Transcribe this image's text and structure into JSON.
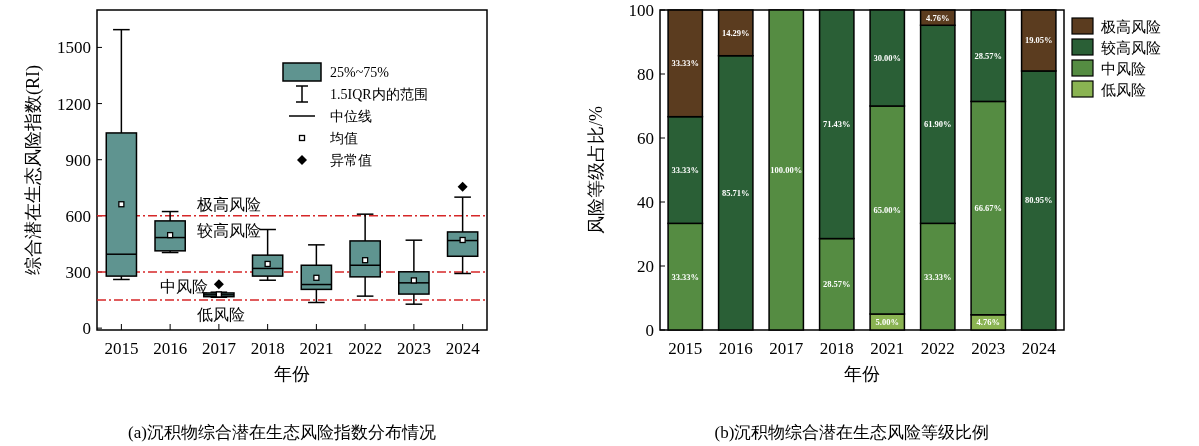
{
  "chart_data": [
    {
      "type": "box",
      "title": "(a)沉积物综合潜在生态风险指数分布情况",
      "xlabel": "年份",
      "ylabel": "综合潜在生态风险指数(RI)",
      "categories": [
        "2015",
        "2016",
        "2017",
        "2018",
        "2021",
        "2022",
        "2023",
        "2024"
      ],
      "ylim": [
        -10,
        1700
      ],
      "yticks": [
        0,
        300,
        600,
        900,
        1200,
        1500
      ],
      "legend": "top right",
      "series": [
        {
          "name": "25%~75%",
          "color": "#5f9490",
          "boxes": [
            {
              "low": 260,
              "q1": 278,
              "median": 395,
              "q3": 1043,
              "high": 1595,
              "mean": 662
            },
            {
              "low": 404,
              "q1": 413,
              "median": 484,
              "q3": 573,
              "high": 623,
              "mean": 497
            },
            {
              "low": 165,
              "q1": 168,
              "median": 178,
              "q3": 188,
              "high": 192,
              "mean": 180,
              "outliers": [
                235
              ]
            },
            {
              "low": 256,
              "q1": 278,
              "median": 319,
              "q3": 390,
              "high": 527,
              "mean": 343
            },
            {
              "low": 137,
              "q1": 207,
              "median": 233,
              "q3": 336,
              "high": 445,
              "mean": 269
            },
            {
              "low": 171,
              "q1": 274,
              "median": 336,
              "q3": 466,
              "high": 609,
              "mean": 363
            },
            {
              "low": 128,
              "q1": 182,
              "median": 242,
              "q3": 301,
              "high": 470,
              "mean": 255
            },
            {
              "low": 292,
              "q1": 384,
              "median": 468,
              "q3": 514,
              "high": 700,
              "mean": 471,
              "outliers": [
                755
              ]
            }
          ]
        }
      ],
      "ref_lines": [
        {
          "axis": "y",
          "value": 600,
          "color": "#d62728",
          "line_style": "dashed"
        },
        {
          "axis": "y",
          "value": 300,
          "color": "#d62728",
          "line_style": "dashed"
        },
        {
          "axis": "y",
          "value": 150,
          "color": "#d62728",
          "line_style": "dashed"
        }
      ],
      "annotations": [
        "1.5IQR内的范围",
        "中位线",
        "均值",
        "异常值",
        "极高风险",
        "较高风险",
        "中风险",
        "低风险"
      ]
    },
    {
      "type": "bar",
      "stacked": true,
      "title": "(b)沉积物综合潜在生态风险等级比例",
      "xlabel": "年份",
      "ylabel": "风险等级占比/%",
      "categories": [
        "2015",
        "2016",
        "2017",
        "2018",
        "2021",
        "2022",
        "2023",
        "2024"
      ],
      "ylim": [
        0,
        100
      ],
      "yticks": [
        0,
        20,
        40,
        60,
        80,
        100
      ],
      "legend": "right",
      "series": [
        {
          "name": "低风险",
          "color": "#8ab352",
          "values": [
            0,
            0,
            0,
            0,
            5,
            0,
            4.76,
            0
          ],
          "value_labels": [
            null,
            null,
            null,
            null,
            "5.00%",
            null,
            "4.76%",
            null
          ]
        },
        {
          "name": "中风险",
          "color": "#558c42",
          "values": [
            33.33,
            0,
            100,
            28.57,
            65,
            33.33,
            66.67,
            0
          ],
          "value_labels": [
            "33.33%",
            null,
            "100.00%",
            "28.57%",
            "65.00%",
            "33.33%",
            "66.67%",
            null
          ]
        },
        {
          "name": "较高风险",
          "color": "#2a5f36",
          "values": [
            33.33,
            85.71,
            0,
            71.43,
            30,
            61.9,
            28.57,
            80.95
          ],
          "value_labels": [
            "33.33%",
            "85.71%",
            null,
            "71.43%",
            "30.00%",
            "61.90%",
            "28.57%",
            "80.95%"
          ]
        },
        {
          "name": "极高风险",
          "color": "#5b3c1f",
          "values": [
            33.33,
            14.29,
            0,
            0,
            0,
            4.76,
            0,
            19.05
          ],
          "value_labels": [
            "33.33%",
            "14.29%",
            null,
            null,
            null,
            "4.76%",
            null,
            "19.05%"
          ]
        }
      ]
    }
  ]
}
